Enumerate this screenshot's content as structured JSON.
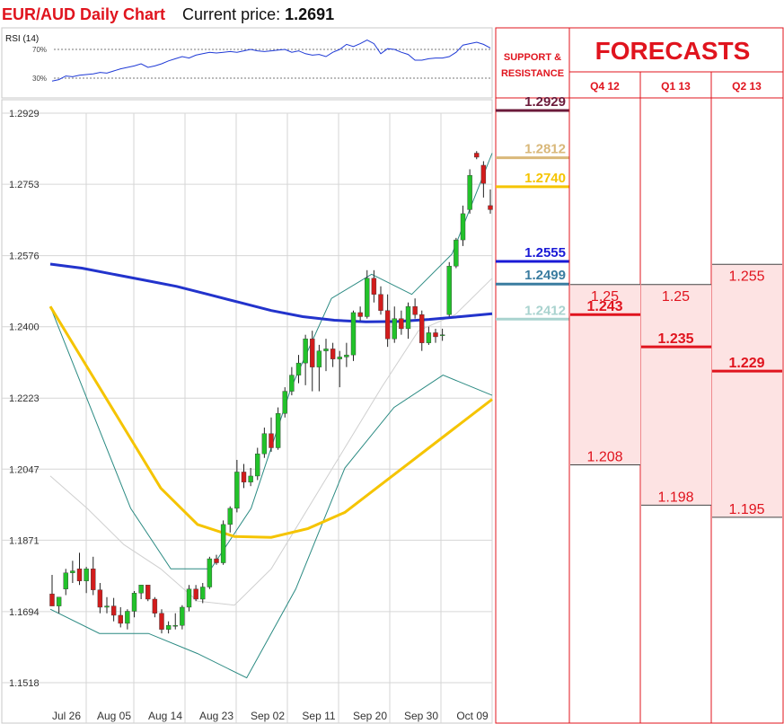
{
  "header": {
    "title": "EUR/AUD Daily Chart",
    "current_price_label": "Current price:",
    "current_price": "1.2691"
  },
  "rsi": {
    "label": "RSI (14)",
    "level_high": "70%",
    "level_low": "30%",
    "values": [
      26,
      28,
      33,
      32,
      34,
      35,
      36,
      38,
      37,
      40,
      43,
      45,
      47,
      50,
      45,
      47,
      50,
      54,
      57,
      60,
      58,
      62,
      64,
      66,
      65,
      66,
      67,
      66,
      68,
      70,
      68,
      67,
      68,
      69,
      70,
      66,
      68,
      64,
      62,
      63,
      60,
      66,
      70,
      77,
      74,
      78,
      83,
      78,
      64,
      71,
      70,
      66,
      63,
      55,
      55,
      57,
      58,
      58,
      60,
      66,
      76,
      78,
      80,
      77,
      72
    ]
  },
  "support_resistance": {
    "header": "SUPPORT & RESISTANCE",
    "levels": [
      {
        "value": "1.2929",
        "color": "#6b1a3a"
      },
      {
        "value": "1.2812",
        "color": "#d9b87a"
      },
      {
        "value": "1.2740",
        "color": "#f5c400"
      },
      {
        "value": "1.2555",
        "color": "#1a1ad6"
      },
      {
        "value": "1.2499",
        "color": "#3a7ca0"
      },
      {
        "value": "1.2412",
        "color": "#a9d3cf"
      }
    ]
  },
  "forecasts": {
    "title": "FORECASTS",
    "columns": [
      {
        "label": "Q4 12",
        "high": "1.25",
        "mid": "1.243",
        "low": "1.208"
      },
      {
        "label": "Q1 13",
        "high": "1.25",
        "mid": "1.235",
        "low": "1.198"
      },
      {
        "label": "Q2 13",
        "high": "1.255",
        "mid": "1.229",
        "low": "1.195"
      }
    ]
  },
  "chart_data": {
    "type": "candlestick",
    "title": "EUR/AUD Daily Chart",
    "y_ticks": [
      "1.2929",
      "1.2753",
      "1.2576",
      "1.2400",
      "1.2223",
      "1.2047",
      "1.1871",
      "1.1694",
      "1.1518"
    ],
    "ylim": [
      1.1518,
      1.2929
    ],
    "x_ticks": [
      "Jul 26",
      "Aug 05",
      "Aug 14",
      "Aug 23",
      "Sep 02",
      "Sep 11",
      "Sep 20",
      "Sep 30",
      "Oct 09"
    ],
    "grid": true,
    "colors": {
      "up": "#22c22a",
      "down": "#d21c1c",
      "ma_long": "#2233cc",
      "ma_mid": "#f5c400",
      "bands": "#2a8a82",
      "ma_short": "#cccccc"
    },
    "candles": [
      {
        "o": 1.1738,
        "h": 1.1785,
        "l": 1.1715,
        "c": 1.1708
      },
      {
        "o": 1.1708,
        "h": 1.173,
        "l": 1.169,
        "c": 1.173
      },
      {
        "o": 1.175,
        "h": 1.18,
        "l": 1.1735,
        "c": 1.179
      },
      {
        "o": 1.179,
        "h": 1.182,
        "l": 1.1765,
        "c": 1.1795
      },
      {
        "o": 1.18,
        "h": 1.184,
        "l": 1.176,
        "c": 1.177
      },
      {
        "o": 1.177,
        "h": 1.1805,
        "l": 1.174,
        "c": 1.18
      },
      {
        "o": 1.18,
        "h": 1.183,
        "l": 1.1735,
        "c": 1.1748
      },
      {
        "o": 1.1748,
        "h": 1.1765,
        "l": 1.169,
        "c": 1.1705
      },
      {
        "o": 1.1705,
        "h": 1.173,
        "l": 1.169,
        "c": 1.1708
      },
      {
        "o": 1.1708,
        "h": 1.1728,
        "l": 1.167,
        "c": 1.1685
      },
      {
        "o": 1.1685,
        "h": 1.1705,
        "l": 1.1655,
        "c": 1.1665
      },
      {
        "o": 1.1665,
        "h": 1.17,
        "l": 1.165,
        "c": 1.1695
      },
      {
        "o": 1.1695,
        "h": 1.1745,
        "l": 1.168,
        "c": 1.174
      },
      {
        "o": 1.174,
        "h": 1.176,
        "l": 1.1725,
        "c": 1.176
      },
      {
        "o": 1.176,
        "h": 1.176,
        "l": 1.172,
        "c": 1.1725
      },
      {
        "o": 1.1725,
        "h": 1.173,
        "l": 1.168,
        "c": 1.169
      },
      {
        "o": 1.169,
        "h": 1.17,
        "l": 1.164,
        "c": 1.165
      },
      {
        "o": 1.165,
        "h": 1.167,
        "l": 1.164,
        "c": 1.166
      },
      {
        "o": 1.166,
        "h": 1.169,
        "l": 1.165,
        "c": 1.166
      },
      {
        "o": 1.166,
        "h": 1.171,
        "l": 1.165,
        "c": 1.1705
      },
      {
        "o": 1.1705,
        "h": 1.176,
        "l": 1.1695,
        "c": 1.175
      },
      {
        "o": 1.175,
        "h": 1.176,
        "l": 1.172,
        "c": 1.1725
      },
      {
        "o": 1.1725,
        "h": 1.1765,
        "l": 1.1715,
        "c": 1.1755
      },
      {
        "o": 1.1755,
        "h": 1.183,
        "l": 1.175,
        "c": 1.1825
      },
      {
        "o": 1.1825,
        "h": 1.1835,
        "l": 1.181,
        "c": 1.1815
      },
      {
        "o": 1.1815,
        "h": 1.192,
        "l": 1.181,
        "c": 1.191
      },
      {
        "o": 1.191,
        "h": 1.1955,
        "l": 1.189,
        "c": 1.195
      },
      {
        "o": 1.195,
        "h": 1.207,
        "l": 1.194,
        "c": 1.204
      },
      {
        "o": 1.204,
        "h": 1.206,
        "l": 1.2,
        "c": 1.2015
      },
      {
        "o": 1.2015,
        "h": 1.205,
        "l": 1.2005,
        "c": 1.203
      },
      {
        "o": 1.203,
        "h": 1.21,
        "l": 1.202,
        "c": 1.2085
      },
      {
        "o": 1.2085,
        "h": 1.215,
        "l": 1.2075,
        "c": 1.2135
      },
      {
        "o": 1.2135,
        "h": 1.2175,
        "l": 1.209,
        "c": 1.21
      },
      {
        "o": 1.21,
        "h": 1.22,
        "l": 1.2095,
        "c": 1.2185
      },
      {
        "o": 1.2185,
        "h": 1.225,
        "l": 1.2175,
        "c": 1.224
      },
      {
        "o": 1.224,
        "h": 1.23,
        "l": 1.223,
        "c": 1.228
      },
      {
        "o": 1.228,
        "h": 1.233,
        "l": 1.226,
        "c": 1.231
      },
      {
        "o": 1.231,
        "h": 1.238,
        "l": 1.2255,
        "c": 1.237
      },
      {
        "o": 1.237,
        "h": 1.239,
        "l": 1.224,
        "c": 1.23
      },
      {
        "o": 1.23,
        "h": 1.2355,
        "l": 1.224,
        "c": 1.234
      },
      {
        "o": 1.234,
        "h": 1.237,
        "l": 1.229,
        "c": 1.2345
      },
      {
        "o": 1.2345,
        "h": 1.236,
        "l": 1.23,
        "c": 1.232
      },
      {
        "o": 1.232,
        "h": 1.234,
        "l": 1.225,
        "c": 1.2325
      },
      {
        "o": 1.2325,
        "h": 1.236,
        "l": 1.23,
        "c": 1.233
      },
      {
        "o": 1.233,
        "h": 1.244,
        "l": 1.2315,
        "c": 1.2435
      },
      {
        "o": 1.2435,
        "h": 1.245,
        "l": 1.2415,
        "c": 1.2425
      },
      {
        "o": 1.2425,
        "h": 1.254,
        "l": 1.242,
        "c": 1.252
      },
      {
        "o": 1.252,
        "h": 1.254,
        "l": 1.246,
        "c": 1.248
      },
      {
        "o": 1.248,
        "h": 1.25,
        "l": 1.243,
        "c": 1.244
      },
      {
        "o": 1.244,
        "h": 1.248,
        "l": 1.235,
        "c": 1.237
      },
      {
        "o": 1.237,
        "h": 1.245,
        "l": 1.236,
        "c": 1.242
      },
      {
        "o": 1.242,
        "h": 1.244,
        "l": 1.238,
        "c": 1.2395
      },
      {
        "o": 1.2395,
        "h": 1.246,
        "l": 1.237,
        "c": 1.245
      },
      {
        "o": 1.245,
        "h": 1.247,
        "l": 1.242,
        "c": 1.243
      },
      {
        "o": 1.243,
        "h": 1.244,
        "l": 1.234,
        "c": 1.236
      },
      {
        "o": 1.236,
        "h": 1.24,
        "l": 1.2355,
        "c": 1.2385
      },
      {
        "o": 1.2385,
        "h": 1.2395,
        "l": 1.236,
        "c": 1.2375
      },
      {
        "o": 1.238,
        "h": 1.2395,
        "l": 1.2365,
        "c": 1.238
      },
      {
        "o": 1.243,
        "h": 1.256,
        "l": 1.2425,
        "c": 1.255
      },
      {
        "o": 1.255,
        "h": 1.262,
        "l": 1.2545,
        "c": 1.2615
      },
      {
        "o": 1.2615,
        "h": 1.27,
        "l": 1.26,
        "c": 1.268
      },
      {
        "o": 1.269,
        "h": 1.279,
        "l": 1.268,
        "c": 1.2775
      },
      {
        "o": 1.283,
        "h": 1.2835,
        "l": 1.2815,
        "c": 1.282
      },
      {
        "o": 1.28,
        "h": 1.281,
        "l": 1.272,
        "c": 1.2755
      },
      {
        "o": 1.27,
        "h": 1.274,
        "l": 1.268,
        "c": 1.269
      }
    ],
    "ma_long": [
      1.2555,
      1.2545,
      1.253,
      1.2515,
      1.25,
      1.248,
      1.246,
      1.244,
      1.2425,
      1.2416,
      1.2412,
      1.2413,
      1.2418,
      1.2425,
      1.2432
    ],
    "ma_mid": [
      1.245,
      1.23,
      1.215,
      1.2,
      1.191,
      1.188,
      1.1878,
      1.19,
      1.194,
      1.201,
      1.208,
      1.215,
      1.222
    ],
    "ma_short": [
      1.203,
      1.195,
      1.186,
      1.18,
      1.172,
      1.171,
      1.18,
      1.195,
      1.21,
      1.225,
      1.239,
      1.243,
      1.252
    ],
    "band_upper": [
      1.245,
      1.22,
      1.195,
      1.18,
      1.18,
      1.195,
      1.225,
      1.247,
      1.253,
      1.248,
      1.258,
      1.283
    ],
    "band_lower": [
      1.17,
      1.164,
      1.164,
      1.159,
      1.153,
      1.175,
      1.205,
      1.22,
      1.228,
      1.223
    ]
  }
}
